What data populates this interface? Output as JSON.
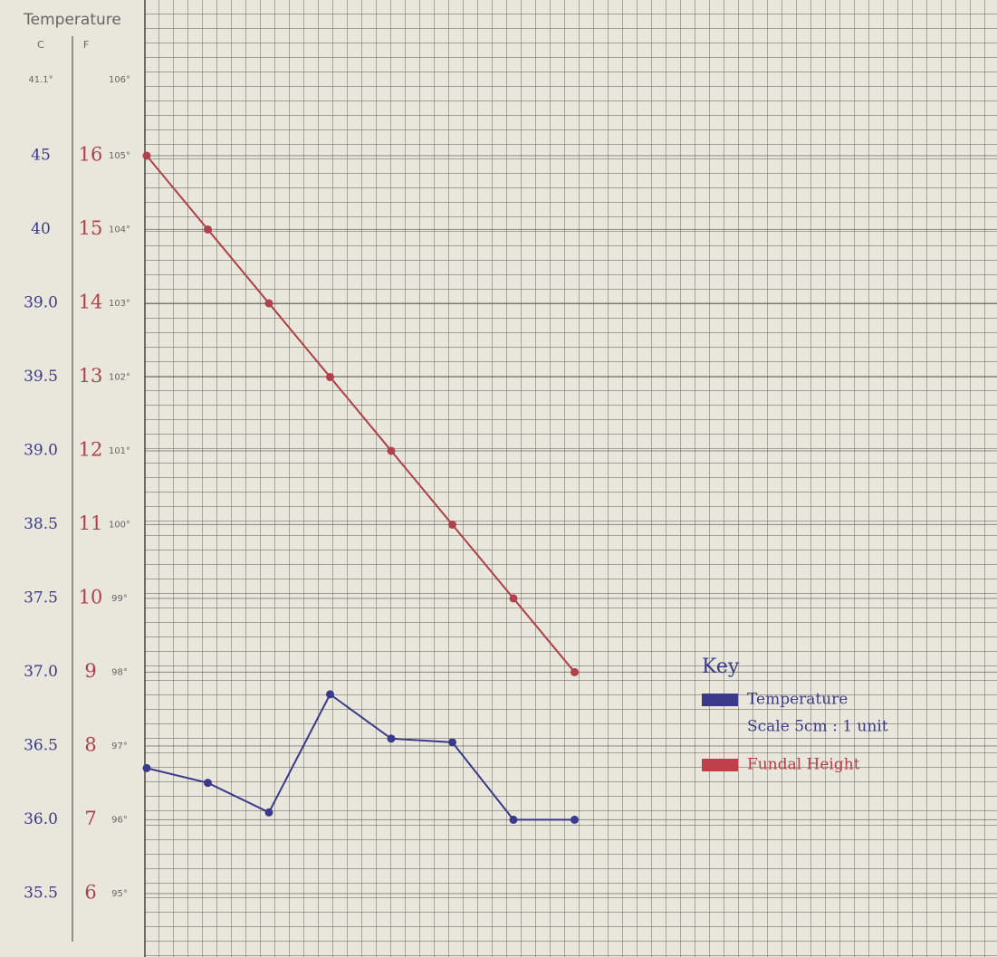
{
  "chart_data": {
    "type": "line",
    "title": "Temperature",
    "celsius_header": "C",
    "fahrenheit_header": "F",
    "top_celsius_label": "41.1°",
    "top_fahrenheit_label": "106°",
    "categories": [
      null,
      null,
      null,
      null,
      null,
      null,
      null,
      null
    ],
    "series": [
      {
        "name": "Temperature",
        "color": "#3a3a8c",
        "values": [
          7.7,
          7.5,
          7.1,
          8.7,
          8.1,
          8.05,
          7.0,
          7.0
        ]
      },
      {
        "name": "Fundal Height",
        "color": "#b0404a",
        "values": [
          16,
          15,
          14,
          13,
          12,
          11,
          10,
          9
        ]
      }
    ],
    "ylim": [
      5.14,
      18.11
    ],
    "yticks": [
      16,
      15,
      14,
      13,
      12,
      11,
      10,
      9,
      8,
      7,
      6
    ],
    "celsius_labels": [
      "45",
      "40",
      "39.0",
      "39.5",
      "39.0",
      "38.5",
      "37.5",
      "37.0",
      "36.5",
      "36.0",
      "35.5"
    ],
    "fahrenheit_labels": [
      "105°",
      "104°",
      "103°",
      "102°",
      "101°",
      "100°",
      "99°",
      "98°",
      "97°",
      "96°",
      "95°"
    ],
    "legend_title": "Key",
    "scale_note": "Scale 5cm : 1 unit",
    "grid": true
  }
}
